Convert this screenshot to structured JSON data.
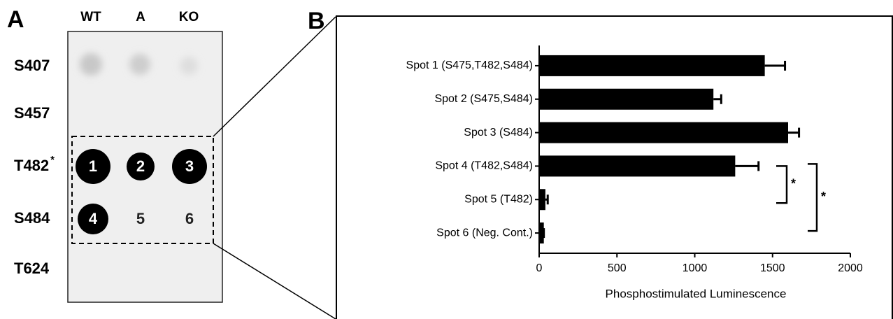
{
  "panel_a": {
    "label": "A",
    "columns": [
      "WT",
      "A",
      "KO"
    ],
    "rows": [
      "S407",
      "S457",
      "T482",
      "S484",
      "T624"
    ],
    "row_mark": "*",
    "spots": [
      "1",
      "2",
      "3",
      "4",
      "5",
      "6"
    ]
  },
  "chart_data": {
    "type": "hbar",
    "panel_label": "B",
    "categories": [
      "Spot 1 (S475,T482,S484)",
      "Spot 2 (S475,S484)",
      "Spot 3 (S484)",
      "Spot 4 (T482,S484)",
      "Spot 5 (T482)",
      "Spot 6 (Neg. Cont.)"
    ],
    "values": [
      1450,
      1120,
      1600,
      1260,
      40,
      30
    ],
    "errors": [
      130,
      50,
      70,
      150,
      15,
      0
    ],
    "color": "#000000",
    "xlabel": "Phosphostimulated  Luminescence",
    "xlim": [
      0,
      2000
    ],
    "xticks": [
      0,
      500,
      1000,
      1500,
      2000
    ],
    "annotations": [
      "*",
      "*"
    ]
  }
}
